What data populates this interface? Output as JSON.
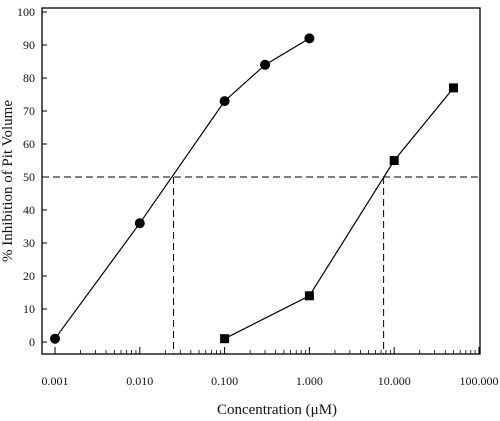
{
  "chart_data": {
    "type": "line",
    "xlabel_main": "Concentration (",
    "xlabel_unit_symbol": "μ",
    "xlabel_unit": "M)",
    "ylabel": "% Inhibition of Pit Volume",
    "x_scale": "log",
    "xlim": [
      0.001,
      100
    ],
    "ylim": [
      0,
      100
    ],
    "x_ticks": [
      0.001,
      0.01,
      0.1,
      1,
      10,
      100
    ],
    "x_tick_labels": [
      "0.001",
      "0.010",
      "0.100",
      "1.000",
      "10.000",
      "100.000"
    ],
    "y_ticks": [
      0,
      10,
      20,
      30,
      40,
      50,
      60,
      70,
      80,
      90,
      100
    ],
    "y_tick_labels": [
      "0",
      "10",
      "20",
      "30",
      "40",
      "50",
      "60",
      "70",
      "80",
      "90",
      "100"
    ],
    "series": [
      {
        "marker": "circle",
        "color": "#000000",
        "points": [
          {
            "x": 0.001,
            "y": 1
          },
          {
            "x": 0.01,
            "y": 36
          },
          {
            "x": 0.1,
            "y": 73
          },
          {
            "x": 0.3,
            "y": 84
          },
          {
            "x": 1,
            "y": 92
          }
        ]
      },
      {
        "marker": "square",
        "color": "#000000",
        "points": [
          {
            "x": 0.1,
            "y": 1
          },
          {
            "x": 1,
            "y": 14
          },
          {
            "x": 10,
            "y": 55
          },
          {
            "x": 50,
            "y": 77
          }
        ]
      }
    ],
    "reference_lines": [
      {
        "orientation": "horizontal",
        "y": 50
      },
      {
        "orientation": "vertical",
        "x": 0.025,
        "y_to": 50
      },
      {
        "orientation": "vertical",
        "x": 7.5,
        "y_to": 50
      }
    ],
    "grid": false,
    "legend": "none"
  }
}
